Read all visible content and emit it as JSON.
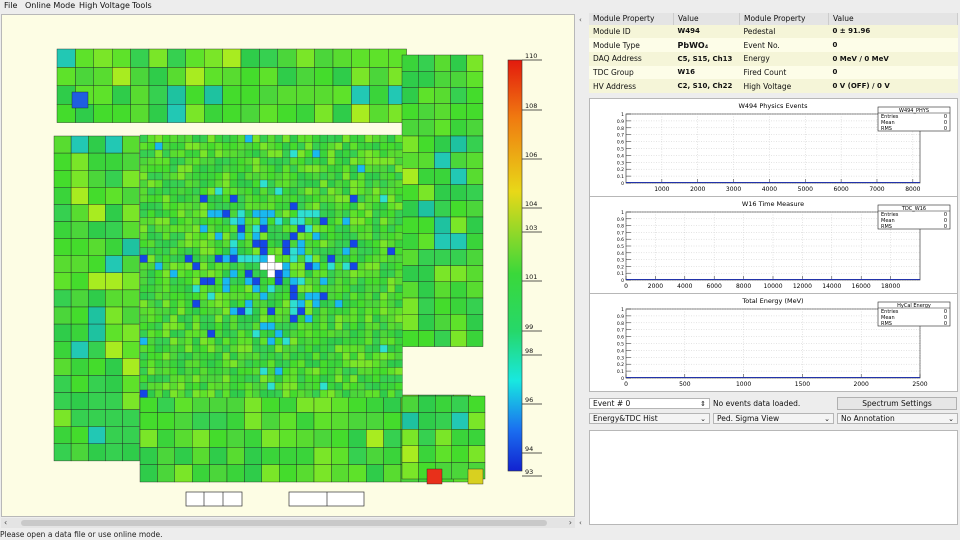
{
  "menu": [
    "File",
    "Online Mode",
    "High Voltage",
    "Tools"
  ],
  "colorbar": {
    "min": 93,
    "max": 110,
    "labels": [
      "110",
      "108",
      "106",
      "104",
      "103",
      "101",
      "99",
      "98",
      "96",
      "94",
      "93"
    ]
  },
  "properties": {
    "headers": [
      "Module Property",
      "Value",
      "Module Property",
      "Value"
    ],
    "rows": [
      [
        "Module ID",
        "W494",
        "Pedestal",
        "0 ± 91.96"
      ],
      [
        "Module Type",
        "PbWO₄",
        "Event No.",
        "0"
      ],
      [
        "DAQ Address",
        "C5, S15, Ch13",
        "Energy",
        "0 MeV / 0 MeV"
      ],
      [
        "TDC Group",
        "W16",
        "Fired Count",
        "0"
      ],
      [
        "HV Address",
        "C2, S10, Ch22",
        "High Voltage",
        "0 V (OFF) / 0 V"
      ]
    ]
  },
  "histograms": [
    {
      "title": "W494 Physics Events",
      "stats_title": "W494_PHYS",
      "stats": [
        [
          "Entries",
          "0"
        ],
        [
          "Mean",
          "0"
        ],
        [
          "RMS",
          "0"
        ]
      ],
      "y_ticks": [
        "0",
        "0.1",
        "0.2",
        "0.3",
        "0.4",
        "0.5",
        "0.6",
        "0.7",
        "0.8",
        "0.9",
        "1"
      ],
      "y_range": [
        0,
        1
      ],
      "x_range": [
        0,
        8200
      ],
      "x_ticks": [
        "1000",
        "2000",
        "3000",
        "4000",
        "5000",
        "6000",
        "7000",
        "8000"
      ]
    },
    {
      "title": "W16 Time Measure",
      "stats_title": "TDC_W16",
      "stats": [
        [
          "Entries",
          "0"
        ],
        [
          "Mean",
          "0"
        ],
        [
          "RMS",
          "0"
        ]
      ],
      "y_ticks": [
        "0",
        "0.1",
        "0.2",
        "0.3",
        "0.4",
        "0.5",
        "0.6",
        "0.7",
        "0.8",
        "0.9",
        "1"
      ],
      "y_range": [
        0,
        1
      ],
      "x_range": [
        0,
        20000
      ],
      "x_ticks": [
        "0",
        "2000",
        "4000",
        "6000",
        "8000",
        "10000",
        "12000",
        "14000",
        "16000",
        "18000"
      ]
    },
    {
      "title": "Total Energy (MeV)",
      "stats_title": "HyCal Energy",
      "stats": [
        [
          "Entries",
          "0"
        ],
        [
          "Mean",
          "0"
        ],
        [
          "RMS",
          "0"
        ]
      ],
      "y_ticks": [
        "0",
        "0.1",
        "0.2",
        "0.3",
        "0.4",
        "0.5",
        "0.6",
        "0.7",
        "0.8",
        "0.9",
        "1"
      ],
      "y_range": [
        0,
        1
      ],
      "x_range": [
        0,
        2500
      ],
      "x_ticks": [
        "0",
        "500",
        "1000",
        "1500",
        "2000",
        "2500"
      ]
    }
  ],
  "controls": {
    "event_spin": "Event # 0",
    "event_status": "No events data loaded.",
    "spectrum_button": "Spectrum Settings",
    "hist_select": "Energy&TDC Hist",
    "view_select": "Ped. Sigma View",
    "annotation_select": "No Annotation"
  },
  "status": "Please open a data file or use online mode.",
  "splitter_arrows": [
    "‹",
    "›"
  ],
  "scroll_arrows": [
    "‹",
    "›"
  ]
}
